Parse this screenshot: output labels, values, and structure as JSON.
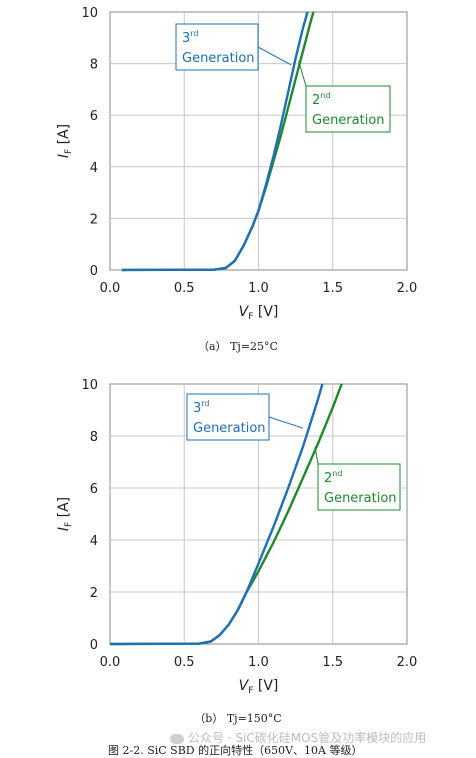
{
  "chart_data": [
    {
      "type": "line",
      "xlabel_main": "V",
      "xlabel_sub": "F",
      "xlabel_unit": "[V]",
      "ylabel_main": "I",
      "ylabel_sub": "F",
      "ylabel_unit": "[A]",
      "xlim": [
        0,
        2.0
      ],
      "ylim": [
        0,
        10
      ],
      "x_ticks": [
        "0.0",
        "0.5",
        "1.0",
        "1.5",
        "2.0"
      ],
      "y_ticks": [
        "0",
        "2",
        "4",
        "6",
        "8",
        "10"
      ],
      "grid": true,
      "series": [
        {
          "name_base": "3",
          "name_sup": "rd",
          "name_line2": "Generation",
          "color": "#1f6fb8",
          "points": [
            [
              0.08,
              0.0
            ],
            [
              0.7,
              0.01
            ],
            [
              0.78,
              0.08
            ],
            [
              0.84,
              0.35
            ],
            [
              0.9,
              0.95
            ],
            [
              0.96,
              1.7
            ],
            [
              1.0,
              2.3
            ],
            [
              1.05,
              3.3
            ],
            [
              1.1,
              4.4
            ],
            [
              1.15,
              5.6
            ],
            [
              1.2,
              6.9
            ],
            [
              1.25,
              8.2
            ],
            [
              1.3,
              9.4
            ],
            [
              1.33,
              10.0
            ]
          ]
        },
        {
          "name_base": "2",
          "name_sup": "nd",
          "name_line2": "Generation",
          "color": "#1e8a2c",
          "points": [
            [
              0.08,
              0.0
            ],
            [
              0.7,
              0.01
            ],
            [
              0.78,
              0.08
            ],
            [
              0.84,
              0.35
            ],
            [
              0.9,
              0.95
            ],
            [
              0.96,
              1.7
            ],
            [
              1.0,
              2.3
            ],
            [
              1.05,
              3.2
            ],
            [
              1.1,
              4.2
            ],
            [
              1.15,
              5.2
            ],
            [
              1.2,
              6.3
            ],
            [
              1.25,
              7.4
            ],
            [
              1.3,
              8.5
            ],
            [
              1.35,
              9.6
            ],
            [
              1.37,
              10.0
            ]
          ]
        }
      ],
      "caption": "（a）  Tj=25°C"
    },
    {
      "type": "line",
      "xlabel_main": "V",
      "xlabel_sub": "F",
      "xlabel_unit": "[V]",
      "ylabel_main": "I",
      "ylabel_sub": "F",
      "ylabel_unit": "[A]",
      "xlim": [
        0,
        2.0
      ],
      "ylim": [
        0,
        10
      ],
      "x_ticks": [
        "0.0",
        "0.5",
        "1.0",
        "1.5",
        "2.0"
      ],
      "y_ticks": [
        "0",
        "2",
        "4",
        "6",
        "8",
        "10"
      ],
      "grid": true,
      "series": [
        {
          "name_base": "3",
          "name_sup": "rd",
          "name_line2": "Generation",
          "color": "#1f6fb8",
          "points": [
            [
              0.0,
              0.0
            ],
            [
              0.6,
              0.01
            ],
            [
              0.68,
              0.1
            ],
            [
              0.74,
              0.35
            ],
            [
              0.8,
              0.75
            ],
            [
              0.86,
              1.3
            ],
            [
              0.92,
              2.0
            ],
            [
              1.0,
              3.1
            ],
            [
              1.1,
              4.5
            ],
            [
              1.2,
              6.0
            ],
            [
              1.3,
              7.6
            ],
            [
              1.4,
              9.4
            ],
            [
              1.43,
              10.0
            ]
          ]
        },
        {
          "name_base": "2",
          "name_sup": "nd",
          "name_line2": "Generation",
          "color": "#1e8a2c",
          "points": [
            [
              0.0,
              0.0
            ],
            [
              0.6,
              0.01
            ],
            [
              0.68,
              0.1
            ],
            [
              0.74,
              0.35
            ],
            [
              0.8,
              0.75
            ],
            [
              0.86,
              1.3
            ],
            [
              0.92,
              2.0
            ],
            [
              1.0,
              2.8
            ],
            [
              1.1,
              3.9
            ],
            [
              1.2,
              5.1
            ],
            [
              1.3,
              6.4
            ],
            [
              1.4,
              7.7
            ],
            [
              1.5,
              9.1
            ],
            [
              1.56,
              10.0
            ]
          ]
        }
      ],
      "caption": "（b）  Tj=150°C"
    }
  ],
  "figure_caption": "图 2-2. SiC SBD 的正向特性（650V、10A 等级）",
  "watermark": "公众号 · SiC碳化硅MOS管及功率模块的应用"
}
